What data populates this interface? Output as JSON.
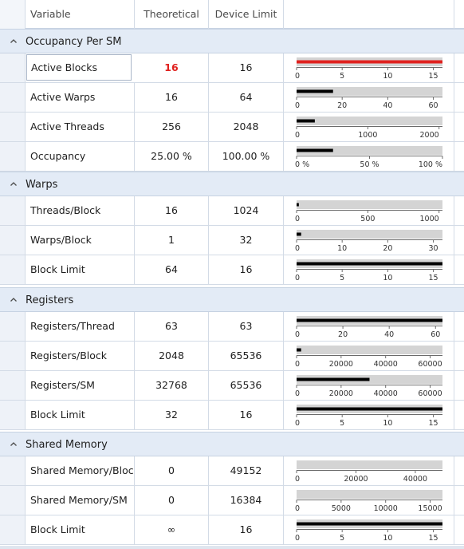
{
  "header": {
    "variable": "Variable",
    "theoretical": "Theoretical",
    "device_limit": "Device Limit"
  },
  "colors": {
    "bar_track": "#d4d4d4",
    "bar_fill": "#000000",
    "bar_fill_highlight": "#e0211e",
    "group_bg": "#e3ebf6"
  },
  "groups": [
    {
      "title": "Occupancy Per SM",
      "rows": [
        {
          "variable": "Active Blocks",
          "theoretical": "16",
          "device_limit": "16",
          "highlight": true,
          "selected": true,
          "bar": {
            "value": 16,
            "max": 16,
            "ticks": [
              0,
              5,
              10,
              15
            ],
            "tick_labels": [
              "0",
              "5",
              "10",
              "15"
            ]
          }
        },
        {
          "variable": "Active Warps",
          "theoretical": "16",
          "device_limit": "64",
          "bar": {
            "value": 16,
            "max": 64,
            "ticks": [
              0,
              20,
              40,
              60
            ],
            "tick_labels": [
              "0",
              "20",
              "40",
              "60"
            ]
          }
        },
        {
          "variable": "Active Threads",
          "theoretical": "256",
          "device_limit": "2048",
          "bar": {
            "value": 256,
            "max": 2048,
            "ticks": [
              0,
              1000,
              2000
            ],
            "tick_labels": [
              "0",
              "1000",
              "2000"
            ]
          }
        },
        {
          "variable": "Occupancy",
          "theoretical": "25.00 %",
          "device_limit": "100.00 %",
          "bar": {
            "value": 25,
            "max": 100,
            "ticks": [
              0,
              50,
              100
            ],
            "tick_labels": [
              "0 %",
              "50 %",
              "100 %"
            ]
          }
        }
      ]
    },
    {
      "title": "Warps",
      "rows": [
        {
          "variable": "Threads/Block",
          "theoretical": "16",
          "device_limit": "1024",
          "bar": {
            "value": 16,
            "max": 1024,
            "ticks": [
              0,
              500,
              1000
            ],
            "tick_labels": [
              "0",
              "500",
              "1000"
            ]
          }
        },
        {
          "variable": "Warps/Block",
          "theoretical": "1",
          "device_limit": "32",
          "bar": {
            "value": 1,
            "max": 32,
            "ticks": [
              0,
              10,
              20,
              30
            ],
            "tick_labels": [
              "0",
              "10",
              "20",
              "30"
            ]
          }
        },
        {
          "variable": "Block Limit",
          "theoretical": "64",
          "device_limit": "16",
          "bar": {
            "value": 16,
            "max": 16,
            "ticks": [
              0,
              5,
              10,
              15
            ],
            "tick_labels": [
              "0",
              "5",
              "10",
              "15"
            ]
          }
        }
      ]
    },
    {
      "title": "Registers",
      "rows": [
        {
          "variable": "Registers/Thread",
          "theoretical": "63",
          "device_limit": "63",
          "bar": {
            "value": 63,
            "max": 63,
            "ticks": [
              0,
              20,
              40,
              60
            ],
            "tick_labels": [
              "0",
              "20",
              "40",
              "60"
            ]
          }
        },
        {
          "variable": "Registers/Block",
          "theoretical": "2048",
          "device_limit": "65536",
          "bar": {
            "value": 2048,
            "max": 65536,
            "ticks": [
              0,
              20000,
              40000,
              60000
            ],
            "tick_labels": [
              "0",
              "20000",
              "40000",
              "60000"
            ]
          }
        },
        {
          "variable": "Registers/SM",
          "theoretical": "32768",
          "device_limit": "65536",
          "bar": {
            "value": 32768,
            "max": 65536,
            "ticks": [
              0,
              20000,
              40000,
              60000
            ],
            "tick_labels": [
              "0",
              "20000",
              "40000",
              "60000"
            ]
          }
        },
        {
          "variable": "Block Limit",
          "theoretical": "32",
          "device_limit": "16",
          "bar": {
            "value": 16,
            "max": 16,
            "ticks": [
              0,
              5,
              10,
              15
            ],
            "tick_labels": [
              "0",
              "5",
              "10",
              "15"
            ]
          }
        }
      ]
    },
    {
      "title": "Shared Memory",
      "rows": [
        {
          "variable": "Shared Memory/Block",
          "theoretical": "0",
          "device_limit": "49152",
          "bar": {
            "value": 0,
            "max": 49152,
            "ticks": [
              0,
              20000,
              40000
            ],
            "tick_labels": [
              "0",
              "20000",
              "40000"
            ]
          }
        },
        {
          "variable": "Shared Memory/SM",
          "theoretical": "0",
          "device_limit": "16384",
          "bar": {
            "value": 0,
            "max": 16384,
            "ticks": [
              0,
              5000,
              10000,
              15000
            ],
            "tick_labels": [
              "0",
              "5000",
              "10000",
              "15000"
            ]
          }
        },
        {
          "variable": "Block Limit",
          "theoretical": "∞",
          "device_limit": "16",
          "bar": {
            "value": 16,
            "max": 16,
            "ticks": [
              0,
              5,
              10,
              15
            ],
            "tick_labels": [
              "0",
              "5",
              "10",
              "15"
            ]
          }
        }
      ]
    }
  ]
}
